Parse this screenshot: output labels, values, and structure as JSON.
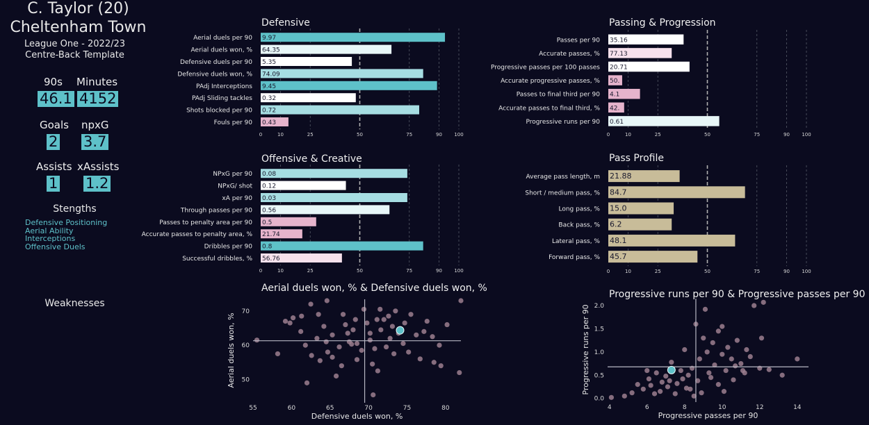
{
  "player": {
    "name": "C. Taylor (20)",
    "team": "Cheltenham Town",
    "season": "League One - 2022/23",
    "template": "Centre-Back Template"
  },
  "stats": [
    {
      "label": "90s",
      "value": "46.1"
    },
    {
      "label": "Minutes",
      "value": "4152"
    },
    {
      "label": "Goals",
      "value": "2"
    },
    {
      "label": "npxG",
      "value": "3.7"
    },
    {
      "label": "Assists",
      "value": "1"
    },
    {
      "label": "xAssists",
      "value": "1.2"
    }
  ],
  "strengths_title": "Stengths",
  "strengths": [
    "Defensive Positioning",
    "Aerial Ability",
    "Interceptions",
    "Offensive Duels"
  ],
  "weaknesses_title": "Weaknesses",
  "colors": {
    "background": "#0b0b1f",
    "teal": "#5ec1c9",
    "light_teal": "#a6dde2",
    "pale": "#e8f7f8",
    "pink": "#e6b4cc",
    "pale_pink": "#f7e1ec",
    "tan": "#c8bc99",
    "scatter_point": "#9c7f8f",
    "highlight": "#5ec1c9"
  },
  "chart_data": [
    {
      "type": "bar",
      "title": "Defensive",
      "categories": [
        "Aerial duels per 90",
        "Aerial duels won, %",
        "Defensive duels per 90",
        "Defensive duels won, %",
        "PAdj Interceptions",
        "PAdj Sliding tackles",
        "Shots blocked per 90",
        "Fouls per 90"
      ],
      "value_labels": [
        "9.97",
        "64.35",
        "5.35",
        "74.09",
        "9.45",
        "0.32",
        "0.72",
        "0.43"
      ],
      "percentiles": [
        93,
        66,
        46,
        82,
        89,
        48,
        80,
        14
      ],
      "bar_colors": [
        "#5ec1c9",
        "#e8f7f8",
        "#ffffff",
        "#a6dde2",
        "#5ec1c9",
        "#ffffff",
        "#a6dde2",
        "#e6b4cc"
      ],
      "xticks": [
        0,
        10,
        25,
        50,
        75,
        90,
        100
      ],
      "xlim": [
        0,
        100
      ]
    },
    {
      "type": "bar",
      "title": "Passing & Progression",
      "categories": [
        "Passes per 90",
        "Accurate passes, %",
        "Progressive passes per 100 passes",
        "Accurate progressive passes, %",
        "Passes to final third per 90",
        "Accurate passes to final third, %",
        "Progressive runs per 90"
      ],
      "value_labels": [
        "35.16",
        "77.13",
        "20.71",
        "50.",
        "4.1",
        "42.",
        "0.61"
      ],
      "percentiles": [
        38,
        32,
        41,
        7,
        16,
        8,
        56
      ],
      "bar_colors": [
        "#ffffff",
        "#f7e1ec",
        "#ffffff",
        "#e6b4cc",
        "#e6b4cc",
        "#e6b4cc",
        "#e8f7f8"
      ],
      "xticks": [
        0,
        10,
        25,
        50,
        75,
        90,
        100
      ],
      "xlim": [
        0,
        100
      ]
    },
    {
      "type": "bar",
      "title": "Offensive & Creative",
      "categories": [
        "NPxG per 90",
        "NPxG/ shot",
        "xA per 90",
        "Through passes per 90",
        "Passes to penalty area per 90",
        "Accurate passes to penalty area, %",
        "Dribbles per 90",
        "Successful dribbles, %"
      ],
      "value_labels": [
        "0.08",
        "0.12",
        "0.03",
        "0.56",
        "0.5",
        "21.74",
        "0.8",
        "56.76"
      ],
      "percentiles": [
        74,
        43,
        74,
        65,
        28,
        21,
        82,
        41
      ],
      "bar_colors": [
        "#a6dde2",
        "#ffffff",
        "#a6dde2",
        "#e8f7f8",
        "#e6b4cc",
        "#e6b4cc",
        "#5ec1c9",
        "#f7e1ec"
      ],
      "xticks": [
        0,
        10,
        25,
        50,
        75,
        90,
        100
      ],
      "xlim": [
        0,
        100
      ]
    },
    {
      "type": "bar",
      "title": "Pass Profile",
      "categories": [
        "Average pass length, m",
        "Short / medium pass, %",
        "Long pass, %",
        "Back pass, %",
        "Lateral pass, %",
        "Forward pass, %"
      ],
      "value_labels": [
        "21.88",
        "84.7",
        "15.0",
        "6.2",
        "48.1",
        "45.7"
      ],
      "percentiles": [
        36,
        69,
        33,
        32,
        64,
        45
      ],
      "bar_colors": [
        "#c8bc99",
        "#c8bc99",
        "#c8bc99",
        "#c8bc99",
        "#c8bc99",
        "#c8bc99"
      ],
      "xticks": [
        0,
        10,
        25,
        50,
        75,
        90,
        100
      ],
      "xlim": [
        0,
        100
      ]
    },
    {
      "type": "scatter",
      "title": "Aerial duels won, % & Defensive duels won, %",
      "xlabel": "Defensive duels won, %",
      "ylabel": "Aerial duels won, %",
      "xlim": [
        55,
        82
      ],
      "ylim": [
        44,
        73
      ],
      "xticks": [
        55,
        60,
        65,
        70,
        75,
        80
      ],
      "yticks": [
        50,
        60,
        70
      ],
      "mean_x": 69.5,
      "mean_y": 61.3,
      "highlight": {
        "x": 74.1,
        "y": 64.35
      },
      "points": [
        [
          55.5,
          61.5
        ],
        [
          59.2,
          67
        ],
        [
          59.8,
          66.5
        ],
        [
          60.2,
          68
        ],
        [
          61.3,
          68.5
        ],
        [
          62.5,
          72
        ],
        [
          61.2,
          64
        ],
        [
          61.8,
          60
        ],
        [
          62.6,
          57
        ],
        [
          63.3,
          62
        ],
        [
          63.5,
          69
        ],
        [
          64.2,
          65.5
        ],
        [
          64.5,
          61
        ],
        [
          64.7,
          58
        ],
        [
          65.3,
          63
        ],
        [
          65.3,
          56.5
        ],
        [
          66.2,
          59.5
        ],
        [
          66.5,
          54
        ],
        [
          66.7,
          69
        ],
        [
          67,
          66
        ],
        [
          67.3,
          63.5
        ],
        [
          67.5,
          61
        ],
        [
          67.8,
          60.3
        ],
        [
          68,
          64.5
        ],
        [
          68.3,
          67.5
        ],
        [
          68.5,
          60.5
        ],
        [
          69.1,
          58.5
        ],
        [
          69.4,
          70.5
        ],
        [
          69.8,
          66.5
        ],
        [
          70.2,
          63.5
        ],
        [
          70.2,
          61.5
        ],
        [
          70.5,
          54.5
        ],
        [
          70.6,
          45.5
        ],
        [
          70.8,
          59
        ],
        [
          71.1,
          67.5
        ],
        [
          71.5,
          70.5
        ],
        [
          71.6,
          64.5
        ],
        [
          72,
          67.5
        ],
        [
          72.3,
          59.5
        ],
        [
          72.6,
          68.5
        ],
        [
          72.8,
          62
        ],
        [
          73.1,
          65.5
        ],
        [
          73.3,
          57.5
        ],
        [
          73.5,
          70
        ],
        [
          73.9,
          63.5
        ],
        [
          74.5,
          60.5
        ],
        [
          74.7,
          66.5
        ],
        [
          75.2,
          58
        ],
        [
          75.5,
          69
        ],
        [
          76.2,
          63
        ],
        [
          76.7,
          56
        ],
        [
          77.6,
          67
        ],
        [
          78.3,
          62.5
        ],
        [
          79.2,
          60
        ],
        [
          79.4,
          54
        ],
        [
          80.2,
          66
        ],
        [
          81.8,
          52
        ],
        [
          82,
          73
        ],
        [
          64.6,
          73
        ],
        [
          63.7,
          55.5
        ],
        [
          68.5,
          55.8
        ],
        [
          58.2,
          57.5
        ],
        [
          65.8,
          51
        ],
        [
          78.5,
          55
        ],
        [
          77.2,
          64
        ],
        [
          71.2,
          52.5
        ],
        [
          62,
          49
        ]
      ]
    },
    {
      "type": "scatter",
      "title": "Progressive runs per 90 & Progressive passes per 90",
      "xlabel": "Progressive passes per 90",
      "ylabel": "Progressive runs per 90",
      "xlim": [
        3.9,
        14.6
      ],
      "ylim": [
        -0.02,
        2.12
      ],
      "xticks": [
        4,
        6,
        8,
        10,
        12,
        14
      ],
      "yticks": [
        0.0,
        0.5,
        1.0,
        1.5,
        2.0
      ],
      "mean_x": 8.6,
      "mean_y": 0.68,
      "highlight": {
        "x": 7.3,
        "y": 0.61
      },
      "points": [
        [
          4.1,
          0.02
        ],
        [
          4.8,
          0.05
        ],
        [
          5.2,
          0.12
        ],
        [
          5.5,
          0.3
        ],
        [
          5.8,
          0.2
        ],
        [
          6,
          0.6
        ],
        [
          6.1,
          0.42
        ],
        [
          6.2,
          0.28
        ],
        [
          6.5,
          0.55
        ],
        [
          6.7,
          0.15
        ],
        [
          6.8,
          0.35
        ],
        [
          7,
          0.48
        ],
        [
          7.1,
          0.25
        ],
        [
          7.3,
          0.78
        ],
        [
          7.5,
          0.1
        ],
        [
          7.6,
          0.32
        ],
        [
          7.8,
          0.6
        ],
        [
          7.9,
          0.42
        ],
        [
          8,
          1.05
        ],
        [
          8.1,
          0.22
        ],
        [
          8.2,
          0.5
        ],
        [
          8.4,
          0.65
        ],
        [
          8.5,
          0.05
        ],
        [
          8.6,
          1.6
        ],
        [
          8.7,
          0.38
        ],
        [
          8.8,
          0.85
        ],
        [
          9,
          1.3
        ],
        [
          9.1,
          1.92
        ],
        [
          9.2,
          1
        ],
        [
          9.4,
          0.45
        ],
        [
          9.5,
          1.2
        ],
        [
          9.6,
          0.72
        ],
        [
          9.8,
          1.45
        ],
        [
          10,
          0.95
        ],
        [
          10,
          1.55
        ],
        [
          10.2,
          0.6
        ],
        [
          10.3,
          1.1
        ],
        [
          10.5,
          0.85
        ],
        [
          10.6,
          0.4
        ],
        [
          10.8,
          1.25
        ],
        [
          11,
          0.75
        ],
        [
          11.2,
          0.55
        ],
        [
          11.5,
          0.9
        ],
        [
          11.7,
          2
        ],
        [
          12,
          0.65
        ],
        [
          12.1,
          1.3
        ],
        [
          12.2,
          2.07
        ],
        [
          13.2,
          0.5
        ],
        [
          14,
          0.85
        ],
        [
          9.8,
          0.3
        ],
        [
          10.1,
          0.15
        ],
        [
          10.7,
          0.7
        ],
        [
          11.1,
          0.6
        ],
        [
          8.3,
          0.2
        ],
        [
          6.4,
          0.1
        ],
        [
          7.2,
          0.38
        ],
        [
          9.3,
          0.55
        ],
        [
          8.9,
          0.12
        ],
        [
          11.3,
          1.05
        ],
        [
          12.5,
          0.62
        ]
      ]
    }
  ]
}
